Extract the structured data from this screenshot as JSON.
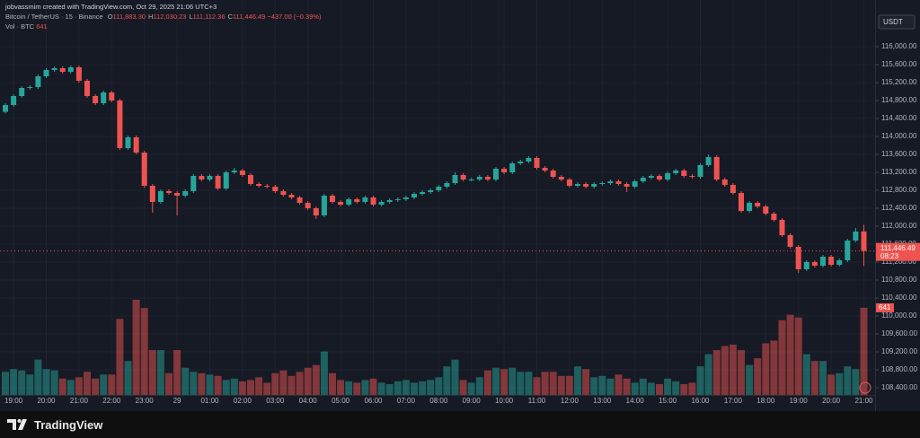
{
  "header": {
    "credit": "jobvassmim created with TradingView.com, Oct 29, 2025 21:06 UTC+3",
    "symbol": "Bitcoin / TetherUS · 15 · Binance",
    "ohlc": [
      {
        "key": "O",
        "value": "111,883.30"
      },
      {
        "key": "H",
        "value": "112,030.23"
      },
      {
        "key": "L",
        "value": "111,112.36"
      },
      {
        "key": "C",
        "value": "111,446.49"
      }
    ],
    "change": "−437.00 (−0.39%)",
    "volume_label": "Vol · BTC"
  },
  "chart_data": {
    "type": "candlestick",
    "categories": [
      null,
      "19:00",
      null,
      null,
      null,
      "20:00",
      null,
      null,
      null,
      "21:00",
      null,
      null,
      null,
      "22:00",
      null,
      null,
      null,
      "23:00",
      null,
      null,
      null,
      "29",
      null,
      null,
      null,
      "01:00",
      null,
      null,
      null,
      "02:00",
      null,
      null,
      null,
      "03:00",
      null,
      null,
      null,
      "04:00",
      null,
      null,
      null,
      "05:00",
      null,
      null,
      null,
      "06:00",
      null,
      null,
      null,
      "07:00",
      null,
      null,
      null,
      "08:00",
      null,
      null,
      null,
      "09:00",
      null,
      null,
      null,
      "10:00",
      null,
      null,
      null,
      "11:00",
      null,
      null,
      null,
      "12:00",
      null,
      null,
      null,
      "13:00",
      null,
      null,
      null,
      "14:00",
      null,
      null,
      null,
      "15:00",
      null,
      null,
      null,
      "16:00",
      null,
      null,
      null,
      "17:00",
      null,
      null,
      null,
      "18:00",
      null,
      null,
      null,
      "19:00",
      null,
      null,
      null,
      "20:00",
      null,
      null,
      null,
      "21:00"
    ],
    "open": [
      114550,
      114700,
      114900,
      115080,
      115100,
      115340,
      115480,
      115520,
      115440,
      115540,
      115240,
      114900,
      114740,
      114980,
      114800,
      113740,
      113980,
      113640,
      112900,
      112540,
      112780,
      112740,
      112680,
      112780,
      113120,
      113040,
      113120,
      112840,
      113200,
      113240,
      113140,
      112940,
      112900,
      112880,
      112780,
      112700,
      112640,
      112520,
      112400,
      112240,
      112680,
      112540,
      112480,
      112600,
      112540,
      112640,
      112480,
      112540,
      112580,
      112600,
      112640,
      112720,
      112760,
      112800,
      112880,
      112960,
      113140,
      113040,
      113040,
      113100,
      113040,
      113280,
      113200,
      113400,
      113440,
      113520,
      113300,
      113240,
      113100,
      113040,
      112900,
      112940,
      112880,
      112940,
      112960,
      113000,
      112940,
      112880,
      113000,
      113080,
      113120,
      113040,
      113180,
      113240,
      113120,
      113100,
      113360,
      113540,
      113040,
      112920,
      112740,
      112340,
      112520,
      112440,
      112280,
      112140,
      111800,
      111540,
      111040,
      111200,
      111120,
      111320,
      111140,
      111240,
      111680,
      111883.3
    ],
    "high": [
      114740,
      114940,
      115120,
      115140,
      115380,
      115520,
      115560,
      115560,
      115580,
      115580,
      115280,
      114940,
      115020,
      115020,
      114840,
      114020,
      114020,
      113680,
      112940,
      112820,
      112820,
      112780,
      112820,
      113160,
      113160,
      113160,
      113160,
      113240,
      113300,
      113280,
      113180,
      112980,
      112940,
      112920,
      112820,
      112740,
      112680,
      112560,
      112440,
      112720,
      112720,
      112580,
      112640,
      112640,
      112680,
      112680,
      112580,
      112620,
      112640,
      112680,
      112760,
      112800,
      112840,
      112920,
      113000,
      113200,
      113180,
      113080,
      113140,
      113140,
      113320,
      113320,
      113440,
      113480,
      113560,
      113560,
      113340,
      113280,
      113140,
      113080,
      112980,
      112980,
      112980,
      113000,
      113040,
      113040,
      112980,
      113040,
      113120,
      113160,
      113160,
      113220,
      113280,
      113280,
      113160,
      113400,
      113600,
      113580,
      113080,
      112960,
      112780,
      112560,
      112560,
      112480,
      112320,
      112180,
      111840,
      111580,
      111240,
      111240,
      111360,
      111360,
      111280,
      111720,
      111960,
      112030.23
    ],
    "low": [
      114510,
      114660,
      114860,
      115040,
      115060,
      115300,
      115440,
      115400,
      115400,
      115200,
      114860,
      114700,
      114700,
      114760,
      113700,
      113700,
      113600,
      112860,
      112300,
      112500,
      112700,
      112240,
      112640,
      112740,
      113000,
      113000,
      112800,
      112800,
      113160,
      113100,
      112900,
      112860,
      112840,
      112740,
      112660,
      112600,
      112480,
      112360,
      112160,
      112200,
      112500,
      112440,
      112440,
      112500,
      112500,
      112440,
      112440,
      112500,
      112540,
      112560,
      112600,
      112680,
      112720,
      112760,
      112840,
      112920,
      113000,
      113000,
      113000,
      113000,
      113000,
      113160,
      113160,
      113360,
      113400,
      113260,
      113200,
      113060,
      113000,
      112860,
      112860,
      112840,
      112840,
      112900,
      112920,
      112900,
      112760,
      112840,
      112960,
      113040,
      113000,
      113000,
      113140,
      113080,
      113060,
      113060,
      113320,
      113000,
      112880,
      112700,
      112300,
      112300,
      112400,
      112240,
      112100,
      111760,
      111500,
      110960,
      111000,
      111080,
      111080,
      111100,
      111100,
      111200,
      111640,
      111112.36
    ],
    "close": [
      114700,
      114900,
      115080,
      115100,
      115340,
      115480,
      115520,
      115440,
      115540,
      115240,
      114900,
      114740,
      114980,
      114800,
      113740,
      113980,
      113640,
      112900,
      112540,
      112780,
      112740,
      112680,
      112780,
      113120,
      113040,
      113120,
      112840,
      113200,
      113240,
      113140,
      112940,
      112900,
      112880,
      112780,
      112700,
      112640,
      112520,
      112400,
      112240,
      112680,
      112540,
      112480,
      112600,
      112540,
      112640,
      112480,
      112540,
      112580,
      112600,
      112640,
      112720,
      112760,
      112800,
      112880,
      112960,
      113140,
      113040,
      113040,
      113100,
      113040,
      113280,
      113200,
      113400,
      113440,
      113520,
      113300,
      113240,
      113100,
      113040,
      112900,
      112940,
      112880,
      112940,
      112960,
      113000,
      112940,
      112880,
      113000,
      113080,
      113120,
      113040,
      113180,
      113240,
      113120,
      113100,
      113360,
      113540,
      113040,
      112920,
      112740,
      112340,
      112520,
      112440,
      112280,
      112140,
      111800,
      111540,
      111040,
      111200,
      111120,
      111320,
      111140,
      111240,
      111680,
      111880,
      111446.49
    ],
    "volume": [
      170,
      190,
      180,
      150,
      260,
      190,
      180,
      120,
      110,
      130,
      170,
      120,
      150,
      150,
      560,
      250,
      700,
      640,
      330,
      330,
      160,
      330,
      200,
      170,
      160,
      150,
      140,
      110,
      120,
      100,
      110,
      130,
      90,
      160,
      180,
      140,
      170,
      200,
      220,
      320,
      160,
      110,
      100,
      90,
      110,
      120,
      90,
      80,
      100,
      110,
      90,
      100,
      110,
      130,
      210,
      260,
      110,
      90,
      130,
      180,
      200,
      190,
      200,
      170,
      170,
      130,
      170,
      170,
      140,
      140,
      210,
      190,
      130,
      140,
      120,
      150,
      120,
      90,
      120,
      90,
      80,
      120,
      100,
      80,
      90,
      210,
      300,
      330,
      360,
      370,
      330,
      220,
      270,
      380,
      400,
      550,
      590,
      570,
      300,
      250,
      250,
      150,
      160,
      210,
      190,
      641
    ],
    "up_color": "#26a69a",
    "down_color": "#ef5350",
    "ylim": [
      108240,
      116240
    ],
    "yticks": [
      {
        "value": 108400,
        "label": "108,400.00"
      },
      {
        "value": 108800,
        "label": "108,800.00"
      },
      {
        "value": 109200,
        "label": "109,200.00"
      },
      {
        "value": 109600,
        "label": "109,600.00"
      },
      {
        "value": 110000,
        "label": "110,000.00"
      },
      {
        "value": 110400,
        "label": "110,400.00"
      },
      {
        "value": 110800,
        "label": "110,800.00"
      },
      {
        "value": 111200,
        "label": "111,200.00"
      },
      {
        "value": 111600,
        "label": "111,600.00"
      },
      {
        "value": 112000,
        "label": "112,000.00"
      },
      {
        "value": 112400,
        "label": "112,400.00"
      },
      {
        "value": 112800,
        "label": "112,800.00"
      },
      {
        "value": 113200,
        "label": "113,200.00"
      },
      {
        "value": 113600,
        "label": "113,600.00"
      },
      {
        "value": 114000,
        "label": "114,000.00"
      },
      {
        "value": 114400,
        "label": "114,400.00"
      },
      {
        "value": 114800,
        "label": "114,800.00"
      },
      {
        "value": 115200,
        "label": "115,200.00"
      },
      {
        "value": 115600,
        "label": "115,600.00"
      },
      {
        "value": 116000,
        "label": "116,000.00"
      }
    ],
    "grid": true,
    "currency": "USDT",
    "last_price": {
      "value": 111446.49,
      "label": "111,446.49"
    },
    "countdown": "08:23"
  },
  "footer": {
    "brand": "TradingView"
  }
}
